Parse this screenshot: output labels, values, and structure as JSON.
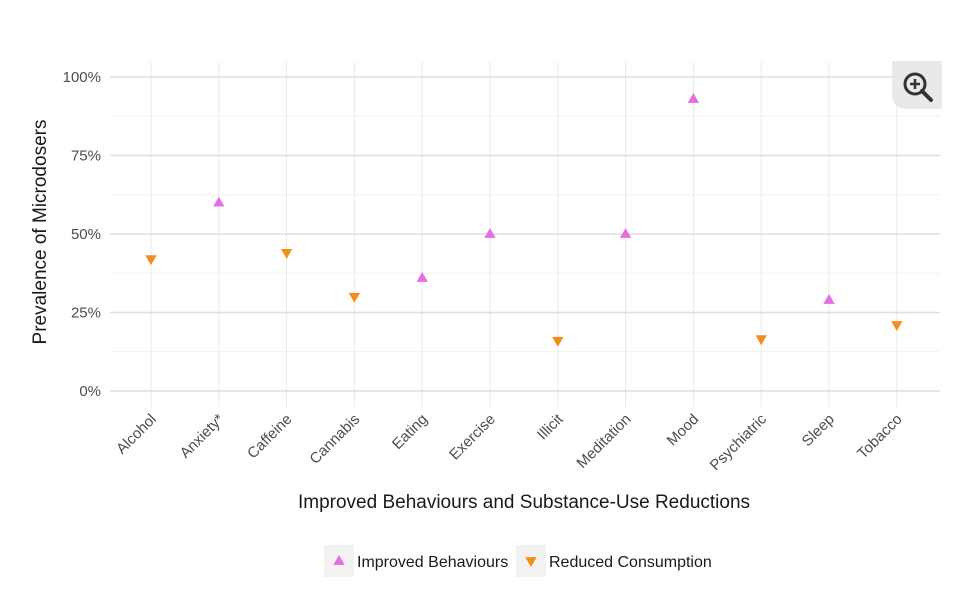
{
  "chart_data": {
    "type": "scatter",
    "xlabel": "Improved Behaviours and Substance-Use Reductions",
    "ylabel": "Prevalence of Microdosers",
    "categories": [
      "Alcohol",
      "Anxiety*",
      "Caffeine",
      "Cannabis",
      "Eating",
      "Exercise",
      "Illicit",
      "Meditation",
      "Mood",
      "Psychiatric",
      "Sleep",
      "Tobacco"
    ],
    "ylim": [
      0,
      1
    ],
    "yticks": [
      0,
      0.25,
      0.5,
      0.75,
      1.0
    ],
    "ytick_labels": [
      "0%",
      "25%",
      "50%",
      "75%",
      "100%"
    ],
    "grid": true,
    "legend_position": "bottom",
    "series": [
      {
        "name": "Improved Behaviours",
        "marker": "triangle-up",
        "color": "#E36FE3",
        "points": [
          {
            "x": "Anxiety*",
            "y": 0.6
          },
          {
            "x": "Eating",
            "y": 0.36
          },
          {
            "x": "Exercise",
            "y": 0.5
          },
          {
            "x": "Meditation",
            "y": 0.5
          },
          {
            "x": "Mood",
            "y": 0.93
          },
          {
            "x": "Sleep",
            "y": 0.29
          }
        ]
      },
      {
        "name": "Reduced Consumption",
        "marker": "triangle-down",
        "color": "#F28E1C",
        "points": [
          {
            "x": "Alcohol",
            "y": 0.42
          },
          {
            "x": "Caffeine",
            "y": 0.44
          },
          {
            "x": "Cannabis",
            "y": 0.3
          },
          {
            "x": "Illicit",
            "y": 0.16
          },
          {
            "x": "Psychiatric",
            "y": 0.165
          },
          {
            "x": "Tobacco",
            "y": 0.21
          }
        ]
      }
    ]
  },
  "controls": {
    "zoom_icon": "zoom-in-icon"
  }
}
